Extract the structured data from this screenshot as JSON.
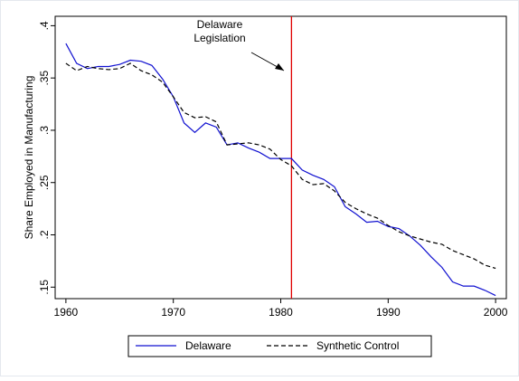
{
  "chart_data": {
    "type": "line",
    "y_label": "Share Employed in Manufacturing",
    "x": [
      1960,
      1961,
      1962,
      1963,
      1964,
      1965,
      1966,
      1967,
      1968,
      1969,
      1970,
      1971,
      1972,
      1973,
      1974,
      1975,
      1976,
      1977,
      1978,
      1979,
      1980,
      1981,
      1982,
      1983,
      1984,
      1985,
      1986,
      1987,
      1988,
      1989,
      1990,
      1991,
      1992,
      1993,
      1994,
      1995,
      1996,
      1997,
      1998,
      1999,
      2000
    ],
    "series": [
      {
        "name": "Delaware",
        "color": "#1010d0",
        "style": "solid",
        "values": [
          0.383,
          0.364,
          0.359,
          0.361,
          0.361,
          0.363,
          0.367,
          0.366,
          0.362,
          0.349,
          0.332,
          0.307,
          0.298,
          0.307,
          0.303,
          0.286,
          0.288,
          0.283,
          0.279,
          0.273,
          0.273,
          0.273,
          0.262,
          0.257,
          0.253,
          0.246,
          0.227,
          0.22,
          0.212,
          0.213,
          0.208,
          0.206,
          0.199,
          0.19,
          0.179,
          0.169,
          0.155,
          0.151,
          0.151,
          0.147,
          0.142
        ]
      },
      {
        "name": "Synthetic Control",
        "color": "#000000",
        "style": "dashed",
        "values": [
          0.364,
          0.357,
          0.361,
          0.359,
          0.358,
          0.359,
          0.364,
          0.357,
          0.353,
          0.346,
          0.332,
          0.317,
          0.312,
          0.313,
          0.308,
          0.286,
          0.287,
          0.288,
          0.286,
          0.282,
          0.272,
          0.266,
          0.253,
          0.248,
          0.249,
          0.242,
          0.231,
          0.225,
          0.22,
          0.216,
          0.209,
          0.203,
          0.199,
          0.196,
          0.193,
          0.191,
          0.185,
          0.181,
          0.177,
          0.171,
          0.168
        ]
      }
    ],
    "vline": {
      "x": 1981,
      "color": "#e00000",
      "label": [
        "Delaware",
        "Legislation"
      ]
    },
    "xlim": [
      1959,
      2001
    ],
    "xticks": [
      1960,
      1970,
      1980,
      1990,
      2000
    ],
    "ylim": [
      0.139,
      0.409
    ],
    "yticks": [
      {
        "value": 0.15,
        "label": ".15"
      },
      {
        "value": 0.2,
        "label": ".2"
      },
      {
        "value": 0.25,
        "label": ".25"
      },
      {
        "value": 0.3,
        "label": ".3"
      },
      {
        "value": 0.35,
        "label": ".35"
      },
      {
        "value": 0.4,
        "label": ".4"
      }
    ],
    "legend": "bottom"
  }
}
